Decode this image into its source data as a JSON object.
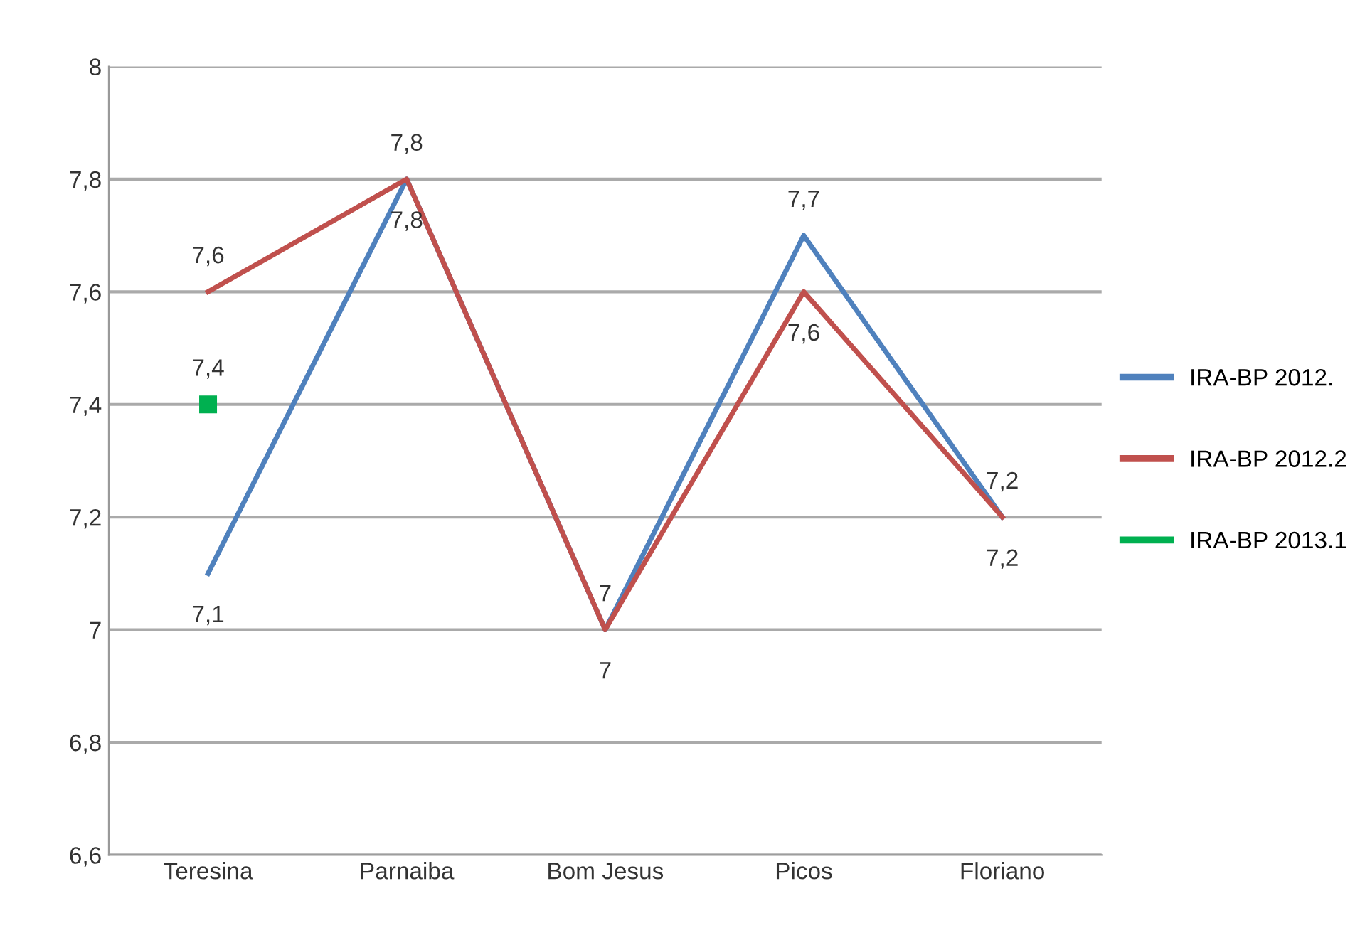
{
  "chart_data": {
    "type": "line",
    "categories": [
      "Teresina",
      "Parnaiba",
      "Bom Jesus",
      "Picos",
      "Floriano"
    ],
    "series": [
      {
        "name": "IRA-BP 2012.",
        "color": "#4f81bd",
        "values": [
          7.1,
          7.8,
          7.0,
          7.7,
          7.2
        ],
        "value_labels": [
          "7,1",
          "7,8",
          "7",
          "7,7",
          "7,2"
        ]
      },
      {
        "name": "IRA-BP 2012.2",
        "color": "#c0504d",
        "values": [
          7.6,
          7.8,
          7.0,
          7.6,
          7.2
        ],
        "value_labels": [
          "7,6",
          "7,8",
          "7",
          "7,6",
          "7,2"
        ]
      },
      {
        "name": "IRA-BP 2013.1",
        "color": "#00b050",
        "marker": "square",
        "values": [
          7.4,
          null,
          null,
          null,
          null
        ],
        "value_labels": [
          "7,4",
          null,
          null,
          null,
          null
        ]
      }
    ],
    "ylim": [
      6.6,
      8
    ],
    "yticks": [
      {
        "value": 6.6,
        "label": "6,6"
      },
      {
        "value": 6.8,
        "label": "6,8"
      },
      7,
      {
        "value": 7.2,
        "label": "7,2"
      },
      {
        "value": 7.4,
        "label": "7,4"
      },
      {
        "value": 7.6,
        "label": "7,6"
      },
      {
        "value": 7.8,
        "label": "7,8"
      },
      8
    ],
    "grid": "y",
    "legend": "right",
    "marker": "none",
    "line_style": "solid"
  }
}
